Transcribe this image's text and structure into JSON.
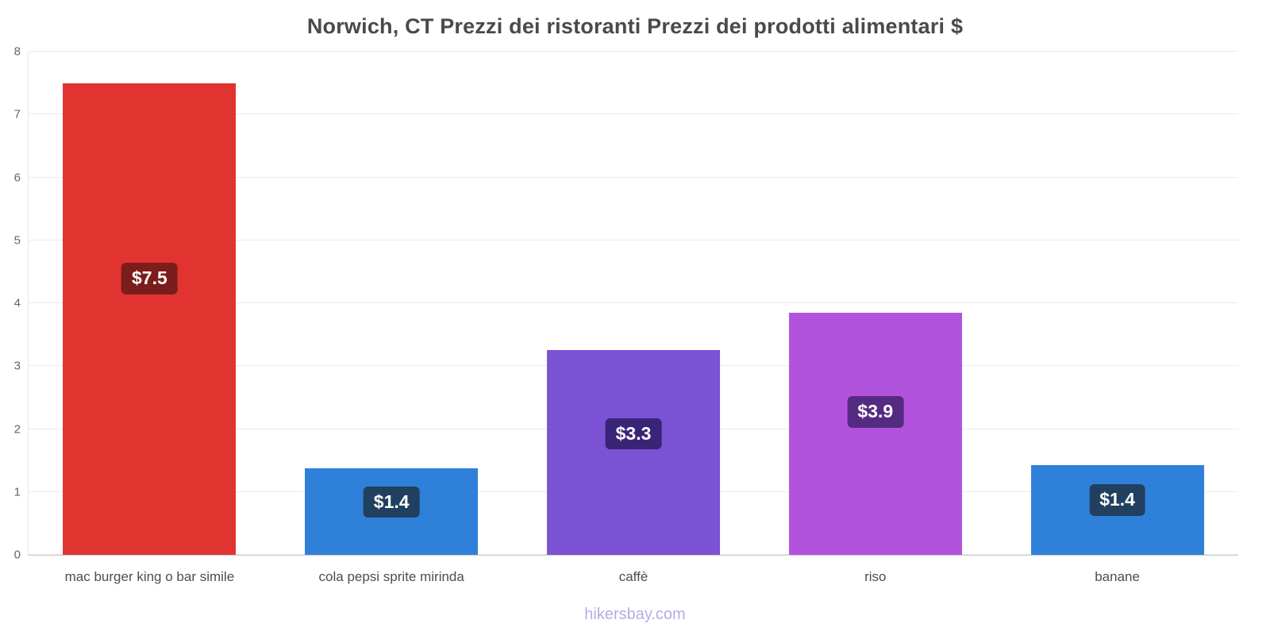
{
  "chart_data": {
    "type": "bar",
    "title": "Norwich, CT Prezzi dei ristoranti Prezzi dei prodotti alimentari $",
    "categories": [
      "mac burger king o bar simile",
      "cola pepsi sprite mirinda",
      "caffè",
      "riso",
      "banane"
    ],
    "values": [
      7.5,
      1.38,
      3.25,
      3.85,
      1.43
    ],
    "value_labels": [
      "$7.5",
      "$1.4",
      "$3.3",
      "$3.9",
      "$1.4"
    ],
    "bar_colors": [
      "#e13431",
      "#2f80d9",
      "#7b52d3",
      "#b253dd",
      "#2f80d9"
    ],
    "label_bg_colors": [
      "#7b1d1d",
      "#21405f",
      "#3a2478",
      "#552a82",
      "#21405f"
    ],
    "xlabel": "",
    "ylabel": "",
    "ylim": [
      0,
      8
    ],
    "yticks": [
      0,
      1,
      2,
      3,
      4,
      5,
      6,
      7,
      8
    ],
    "grid": true,
    "legend": "none",
    "currency": "$",
    "footer": "hikersbay.com"
  }
}
